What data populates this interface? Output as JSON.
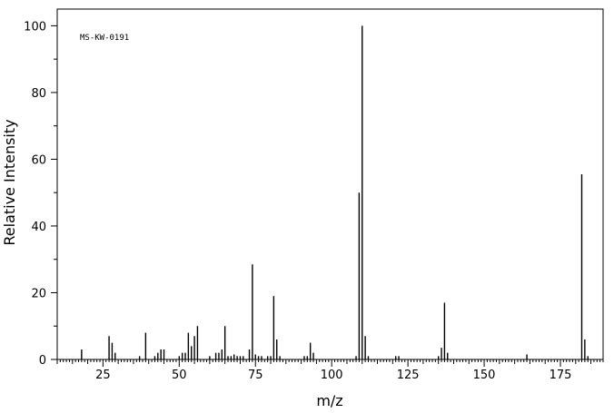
{
  "chart_data": {
    "type": "bar",
    "title": "",
    "annotation": "MS-KW-0191",
    "xlabel": "m/z",
    "ylabel": "Relative Intensity",
    "xlim": [
      10,
      189
    ],
    "ylim": [
      0,
      105
    ],
    "x_ticks": [
      25,
      50,
      75,
      100,
      125,
      150,
      175
    ],
    "y_ticks": [
      0,
      20,
      40,
      60,
      80,
      100
    ],
    "grid": false,
    "series": [
      {
        "x": [
          18,
          27,
          28,
          29,
          37,
          39,
          42,
          43,
          44,
          45,
          50,
          51,
          52,
          53,
          54,
          55,
          56,
          60,
          62,
          63,
          64,
          65,
          66,
          67,
          68,
          69,
          70,
          71,
          73,
          74,
          75,
          76,
          77,
          79,
          80,
          81,
          82,
          83,
          91,
          92,
          93,
          94,
          108,
          109,
          110,
          111,
          112,
          121,
          122,
          135,
          136,
          137,
          138,
          164,
          182,
          183,
          184
        ],
        "values": [
          3,
          7,
          5,
          2,
          1,
          8,
          1,
          2,
          3,
          3,
          1,
          2,
          2,
          8,
          4,
          7,
          10,
          1,
          2,
          2,
          3,
          10,
          1,
          1,
          1.5,
          1,
          1,
          1,
          3,
          28.5,
          1.5,
          1,
          1,
          1,
          1,
          19,
          6,
          1,
          1,
          1,
          5,
          2,
          1,
          50,
          100,
          7,
          1,
          1,
          1,
          1,
          3.5,
          17,
          2,
          1.5,
          55.5,
          6,
          1
        ]
      }
    ]
  }
}
